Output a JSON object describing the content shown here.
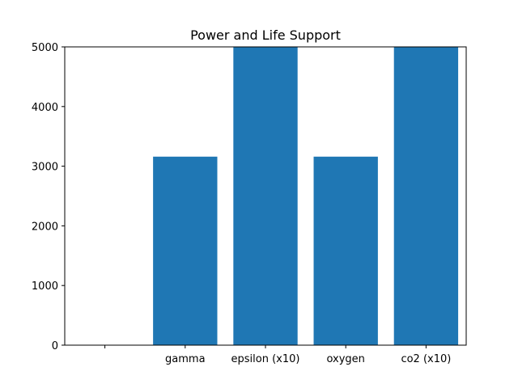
{
  "chart_data": {
    "type": "bar",
    "title": "Power and Life Support",
    "xlabel": "",
    "ylabel": "",
    "categories": [
      "",
      "gamma",
      "epsilon (x10)",
      "oxygen",
      "co2 (x10)"
    ],
    "values": [
      0,
      3160,
      5000,
      3160,
      5000
    ],
    "ylim": [
      0,
      5000
    ],
    "yticks": [
      0,
      1000,
      2000,
      3000,
      4000,
      5000
    ],
    "grid": false,
    "bar_color": "#1f77b4"
  }
}
